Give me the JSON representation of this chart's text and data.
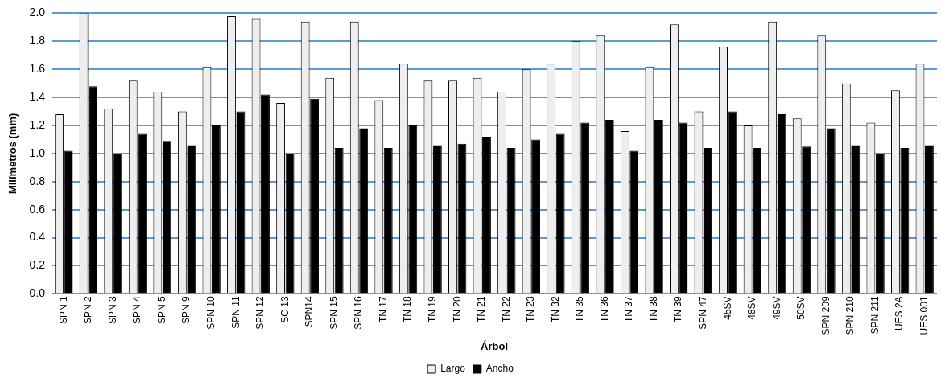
{
  "chart_data": {
    "type": "bar",
    "xlabel": "Árbol",
    "ylabel": "Milímetros (mm)",
    "categories": [
      "SPN 1",
      "SPN 2",
      "SPN 3",
      "SPN 4",
      "SPN 5",
      "SPN 9",
      "SPN 10",
      "SPN 11",
      "SPN 12",
      "SC 13",
      "SPN14",
      "SPN 15",
      "SPN 16",
      "TN 17",
      "TN 18",
      "TN 19",
      "TN 20",
      "TN 21",
      "TN 22",
      "TN 23",
      "TN 32",
      "TN 35",
      "TN 36",
      "TN 37",
      "TN 38",
      "TN 39",
      "SPN 47",
      "45SV",
      "48SV",
      "49SV",
      "50SV",
      "SPN 209",
      "SPN 210",
      "SPN 211",
      "UES 2A",
      "UES 001"
    ],
    "series": [
      {
        "name": "Largo",
        "color": "#eeeeee",
        "values": [
          1.28,
          2.0,
          1.32,
          1.52,
          1.44,
          1.3,
          1.62,
          1.98,
          1.96,
          1.36,
          1.94,
          1.54,
          1.94,
          1.38,
          1.64,
          1.52,
          1.52,
          1.54,
          1.44,
          1.6,
          1.64,
          1.8,
          1.84,
          1.16,
          1.62,
          1.92,
          1.3,
          1.76,
          1.2,
          1.94,
          1.25,
          1.84,
          1.5,
          1.22,
          1.45,
          1.64
        ]
      },
      {
        "name": "Ancho",
        "color": "#000000",
        "values": [
          1.02,
          1.48,
          1.0,
          1.14,
          1.09,
          1.06,
          1.2,
          1.3,
          1.42,
          1.0,
          1.39,
          1.04,
          1.18,
          1.04,
          1.2,
          1.06,
          1.07,
          1.12,
          1.04,
          1.1,
          1.14,
          1.22,
          1.24,
          1.02,
          1.24,
          1.22,
          1.04,
          1.3,
          1.04,
          1.28,
          1.05,
          1.18,
          1.06,
          1.0,
          1.04,
          1.06
        ]
      }
    ],
    "ylim": [
      0,
      2.0
    ],
    "yticks": [
      {
        "value": 0,
        "label": "0.0"
      },
      {
        "value": 0.2,
        "label": "0.2"
      },
      {
        "value": 0.4,
        "label": "0.4"
      },
      {
        "value": 0.6,
        "label": "0.6"
      },
      {
        "value": 0.8,
        "label": "0.8"
      },
      {
        "value": 1.0,
        "label": "1.0"
      },
      {
        "value": 1.2,
        "label": "1.2"
      },
      {
        "value": 1.4,
        "label": "1.4"
      },
      {
        "value": 1.6,
        "label": "1.6"
      },
      {
        "value": 1.8,
        "label": "1.8"
      },
      {
        "value": 2.0,
        "label": "2.0"
      }
    ],
    "grid": "y",
    "legend": "bottom"
  }
}
